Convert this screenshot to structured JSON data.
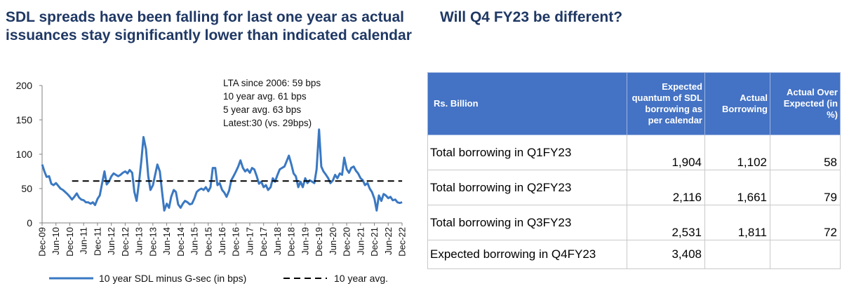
{
  "left_title": "SDL spreads have been falling for last one year as actual issuances stay significantly lower than indicated calendar",
  "right_title": "Will Q4 FY23 be different?",
  "annotations": [
    "LTA since 2006:  59 bps",
    "10 year avg. 61 bps",
    "5 year avg. 63 bps",
    "Latest:30 (vs. 29bps)"
  ],
  "chart_data": {
    "type": "line",
    "title": "",
    "xlabel": "",
    "ylabel": "",
    "ylim": [
      0,
      200
    ],
    "yticks": [
      0,
      50,
      100,
      150,
      200
    ],
    "x_tick_labels": [
      "Dec-09",
      "Jun-10",
      "Dec-10",
      "Jun-11",
      "Dec-11",
      "Jun-12",
      "Dec-12",
      "Jun-13",
      "Dec-13",
      "Jun-14",
      "Dec-14",
      "Jun-15",
      "Dec-15",
      "Jun-16",
      "Dec-16",
      "Jun-17",
      "Dec-17",
      "Jun-18",
      "Dec-18",
      "Jun-19",
      "Dec-19",
      "Jun-20",
      "Dec-20",
      "Jun-21",
      "Dec-21",
      "Jun-22",
      "Dec-22"
    ],
    "x_start": 2009.917,
    "x_end": 2022.917,
    "series": [
      {
        "name": "10 year SDL minus G-sec (in bps)",
        "color": "#3a78c2",
        "style": "solid",
        "points": [
          [
            2009.92,
            85
          ],
          [
            2010.0,
            75
          ],
          [
            2010.08,
            67
          ],
          [
            2010.17,
            68
          ],
          [
            2010.25,
            57
          ],
          [
            2010.33,
            55
          ],
          [
            2010.42,
            58
          ],
          [
            2010.5,
            54
          ],
          [
            2010.58,
            50
          ],
          [
            2010.67,
            48
          ],
          [
            2010.75,
            45
          ],
          [
            2010.83,
            42
          ],
          [
            2010.92,
            38
          ],
          [
            2011.0,
            34
          ],
          [
            2011.08,
            38
          ],
          [
            2011.17,
            43
          ],
          [
            2011.25,
            37
          ],
          [
            2011.33,
            34
          ],
          [
            2011.42,
            33
          ],
          [
            2011.5,
            30
          ],
          [
            2011.58,
            30
          ],
          [
            2011.67,
            28
          ],
          [
            2011.75,
            30
          ],
          [
            2011.83,
            26
          ],
          [
            2011.92,
            35
          ],
          [
            2012.0,
            40
          ],
          [
            2012.08,
            57
          ],
          [
            2012.17,
            75
          ],
          [
            2012.25,
            56
          ],
          [
            2012.33,
            60
          ],
          [
            2012.42,
            68
          ],
          [
            2012.5,
            72
          ],
          [
            2012.58,
            70
          ],
          [
            2012.67,
            68
          ],
          [
            2012.75,
            70
          ],
          [
            2012.83,
            73
          ],
          [
            2012.92,
            75
          ],
          [
            2013.0,
            72
          ],
          [
            2013.08,
            77
          ],
          [
            2013.17,
            73
          ],
          [
            2013.25,
            45
          ],
          [
            2013.33,
            32
          ],
          [
            2013.42,
            60
          ],
          [
            2013.5,
            90
          ],
          [
            2013.58,
            125
          ],
          [
            2013.67,
            107
          ],
          [
            2013.75,
            68
          ],
          [
            2013.83,
            48
          ],
          [
            2013.92,
            55
          ],
          [
            2014.0,
            70
          ],
          [
            2014.08,
            85
          ],
          [
            2014.17,
            75
          ],
          [
            2014.25,
            45
          ],
          [
            2014.33,
            18
          ],
          [
            2014.42,
            28
          ],
          [
            2014.5,
            22
          ],
          [
            2014.58,
            38
          ],
          [
            2014.67,
            48
          ],
          [
            2014.75,
            45
          ],
          [
            2014.83,
            27
          ],
          [
            2014.92,
            22
          ],
          [
            2015.0,
            28
          ],
          [
            2015.08,
            32
          ],
          [
            2015.17,
            30
          ],
          [
            2015.25,
            27
          ],
          [
            2015.33,
            28
          ],
          [
            2015.42,
            36
          ],
          [
            2015.5,
            45
          ],
          [
            2015.58,
            48
          ],
          [
            2015.67,
            50
          ],
          [
            2015.75,
            48
          ],
          [
            2015.83,
            52
          ],
          [
            2015.92,
            46
          ],
          [
            2016.0,
            52
          ],
          [
            2016.08,
            80
          ],
          [
            2016.17,
            80
          ],
          [
            2016.25,
            55
          ],
          [
            2016.33,
            58
          ],
          [
            2016.42,
            48
          ],
          [
            2016.5,
            44
          ],
          [
            2016.58,
            38
          ],
          [
            2016.67,
            47
          ],
          [
            2016.75,
            62
          ],
          [
            2016.83,
            68
          ],
          [
            2016.92,
            75
          ],
          [
            2017.0,
            82
          ],
          [
            2017.08,
            91
          ],
          [
            2017.17,
            80
          ],
          [
            2017.25,
            75
          ],
          [
            2017.33,
            78
          ],
          [
            2017.42,
            73
          ],
          [
            2017.5,
            80
          ],
          [
            2017.58,
            78
          ],
          [
            2017.67,
            68
          ],
          [
            2017.75,
            57
          ],
          [
            2017.83,
            60
          ],
          [
            2017.92,
            52
          ],
          [
            2018.0,
            55
          ],
          [
            2018.08,
            48
          ],
          [
            2018.17,
            52
          ],
          [
            2018.25,
            65
          ],
          [
            2018.33,
            60
          ],
          [
            2018.42,
            70
          ],
          [
            2018.5,
            78
          ],
          [
            2018.58,
            80
          ],
          [
            2018.67,
            82
          ],
          [
            2018.75,
            90
          ],
          [
            2018.83,
            98
          ],
          [
            2018.92,
            85
          ],
          [
            2019.0,
            72
          ],
          [
            2019.08,
            68
          ],
          [
            2019.17,
            52
          ],
          [
            2019.25,
            60
          ],
          [
            2019.33,
            52
          ],
          [
            2019.42,
            65
          ],
          [
            2019.5,
            58
          ],
          [
            2019.58,
            62
          ],
          [
            2019.67,
            60
          ],
          [
            2019.75,
            58
          ],
          [
            2019.83,
            78
          ],
          [
            2019.92,
            136
          ],
          [
            2020.0,
            82
          ],
          [
            2020.08,
            75
          ],
          [
            2020.17,
            70
          ],
          [
            2020.25,
            65
          ],
          [
            2020.33,
            58
          ],
          [
            2020.42,
            62
          ],
          [
            2020.5,
            70
          ],
          [
            2020.58,
            65
          ],
          [
            2020.67,
            72
          ],
          [
            2020.75,
            70
          ],
          [
            2020.83,
            95
          ],
          [
            2020.92,
            78
          ],
          [
            2021.0,
            73
          ],
          [
            2021.08,
            80
          ],
          [
            2021.17,
            82
          ],
          [
            2021.25,
            76
          ],
          [
            2021.33,
            72
          ],
          [
            2021.42,
            65
          ],
          [
            2021.5,
            62
          ],
          [
            2021.58,
            55
          ],
          [
            2021.67,
            58
          ],
          [
            2021.75,
            50
          ],
          [
            2021.83,
            45
          ],
          [
            2021.92,
            35
          ],
          [
            2022.0,
            18
          ],
          [
            2022.08,
            40
          ],
          [
            2022.17,
            32
          ],
          [
            2022.25,
            42
          ],
          [
            2022.33,
            40
          ],
          [
            2022.42,
            36
          ],
          [
            2022.5,
            38
          ],
          [
            2022.58,
            33
          ],
          [
            2022.67,
            34
          ],
          [
            2022.75,
            30
          ],
          [
            2022.83,
            29
          ],
          [
            2022.92,
            30
          ]
        ]
      },
      {
        "name": "10 year avg.",
        "color": "#000000",
        "style": "dashed",
        "points": [
          [
            2011.0,
            61
          ],
          [
            2022.92,
            61
          ]
        ]
      }
    ],
    "legend_position": "bottom"
  },
  "table": {
    "headers": [
      "Rs. Billion",
      "Expected quantum of SDL borrowing as per calendar",
      "Actual Borrowing",
      "Actual Over Expected (in %)"
    ],
    "rows": [
      [
        "Total borrowing in Q1FY23",
        "1,904",
        "1,102",
        "58"
      ],
      [
        "Total borrowing in Q2FY23",
        "2,116",
        "1,661",
        "79"
      ],
      [
        "Total borrowing in Q3FY23",
        "2,531",
        "1,811",
        "72"
      ],
      [
        "Expected borrowing in Q4FY23",
        "3,408",
        "",
        ""
      ]
    ]
  }
}
